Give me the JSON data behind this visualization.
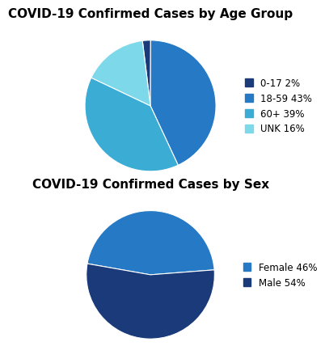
{
  "title1": "COVID-19 Confirmed Cases by Age Group",
  "title2": "COVID-19 Confirmed Cases by Sex",
  "age_labels": [
    "0-17 2%",
    "18-59 43%",
    "60+ 39%",
    "UNK 16%"
  ],
  "age_values": [
    2,
    43,
    39,
    16
  ],
  "age_colors": [
    "#1a3a7a",
    "#2679c5",
    "#3badd4",
    "#7dd8ea"
  ],
  "age_startangle": 97,
  "sex_labels": [
    "Female 46%",
    "Male 54%"
  ],
  "sex_values": [
    46,
    54
  ],
  "sex_colors": [
    "#2679c5",
    "#1a3a7a"
  ],
  "sex_startangle": 170,
  "background_color": "#ffffff",
  "title_fontsize": 11,
  "legend_fontsize": 8.5
}
